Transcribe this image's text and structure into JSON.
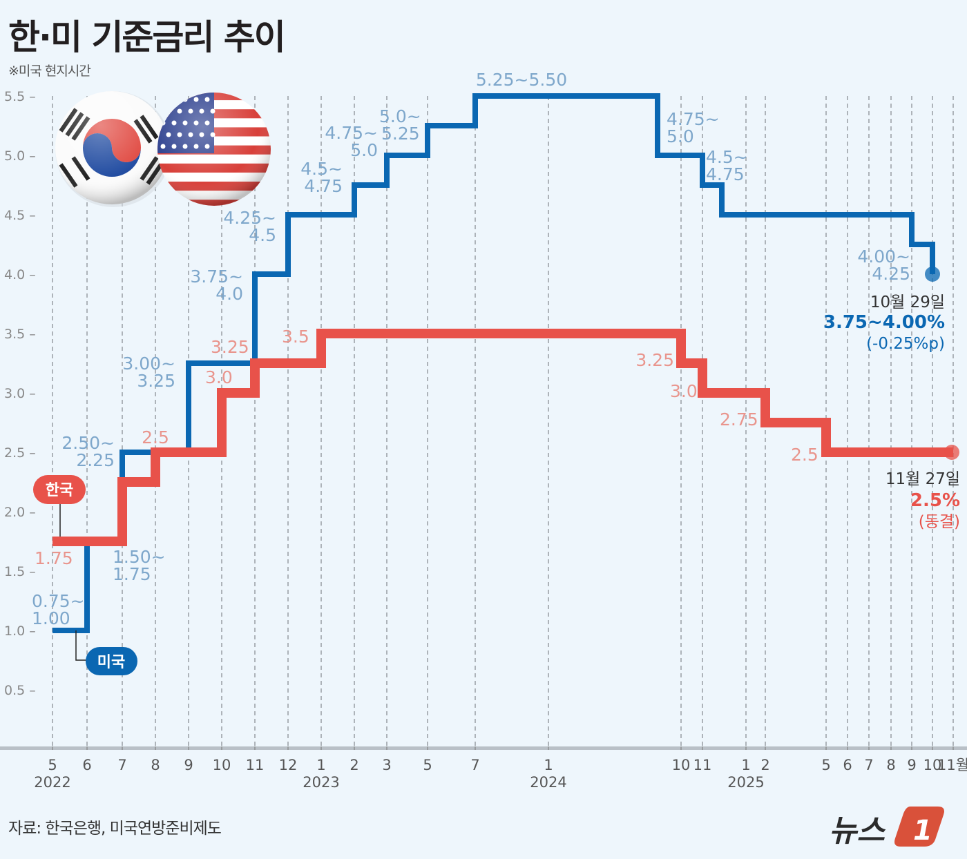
{
  "header": {
    "title": "한·미 기준금리 추이",
    "note": "※미국 현지시간"
  },
  "source": "자료: 한국은행, 미국연방준비제도",
  "logo": {
    "text": "뉴스",
    "mark": "1",
    "color": "#d9513a"
  },
  "colors": {
    "us": "#0a67b2",
    "korea": "#e8524a",
    "us_label": "#7ea7cb",
    "korea_label": "#e9958d",
    "background": "#eef6fc"
  },
  "chart_data": {
    "type": "line",
    "step": true,
    "ylim": [
      0.5,
      5.5
    ],
    "yticks": [
      "0.5",
      "1.0",
      "1.5",
      "2.0",
      "2.5",
      "3.0",
      "3.5",
      "4.0",
      "4.5",
      "5.0",
      "5.5"
    ],
    "xticks": [
      {
        "label": "5",
        "year": "2022",
        "date": "2022-05"
      },
      {
        "label": "6",
        "date": "2022-06"
      },
      {
        "label": "7",
        "date": "2022-07"
      },
      {
        "label": "8",
        "date": "2022-08"
      },
      {
        "label": "9",
        "date": "2022-09"
      },
      {
        "label": "10",
        "date": "2022-10"
      },
      {
        "label": "11",
        "date": "2022-11"
      },
      {
        "label": "12",
        "date": "2022-12"
      },
      {
        "label": "1",
        "year": "2023",
        "date": "2023-01"
      },
      {
        "label": "2",
        "date": "2023-02"
      },
      {
        "label": "3",
        "date": "2023-03"
      },
      {
        "label": "5",
        "date": "2023-05"
      },
      {
        "label": "7",
        "date": "2023-07"
      },
      {
        "label": "1",
        "year": "2024",
        "date": "2024-01"
      },
      {
        "label": "10",
        "date": "2024-10"
      },
      {
        "label": "11",
        "date": "2024-11"
      },
      {
        "label": "1",
        "year": "2025",
        "date": "2025-01"
      },
      {
        "label": "2",
        "date": "2025-02"
      },
      {
        "label": "5",
        "date": "2025-05"
      },
      {
        "label": "6",
        "date": "2025-06"
      },
      {
        "label": "7",
        "date": "2025-07"
      },
      {
        "label": "8",
        "date": "2025-08"
      },
      {
        "label": "9",
        "date": "2025-09"
      },
      {
        "label": "10",
        "date": "2025-10"
      },
      {
        "label": "11월",
        "date": "2025-11"
      }
    ],
    "series": [
      {
        "name": "미국",
        "color": "#0a67b2",
        "points": [
          {
            "date": "2022-05",
            "value": 1.0
          },
          {
            "date": "2022-06",
            "value": 1.75
          },
          {
            "date": "2022-07",
            "value": 2.5
          },
          {
            "date": "2022-09",
            "value": 3.25
          },
          {
            "date": "2022-11",
            "value": 4.0
          },
          {
            "date": "2022-12",
            "value": 4.5
          },
          {
            "date": "2023-02",
            "value": 4.75
          },
          {
            "date": "2023-03",
            "value": 5.0
          },
          {
            "date": "2023-05",
            "value": 5.25
          },
          {
            "date": "2023-07",
            "value": 5.5
          },
          {
            "date": "2024-09",
            "value": 5.0
          },
          {
            "date": "2024-11",
            "value": 4.75
          },
          {
            "date": "2024-12",
            "value": 4.5
          },
          {
            "date": "2025-09",
            "value": 4.25
          },
          {
            "date": "2025-10",
            "value": 4.0
          }
        ],
        "labels": [
          [
            "0.75~",
            "1.00"
          ],
          [
            "1.50~",
            "1.75"
          ],
          [
            "2.50~",
            "2.25"
          ],
          [
            "3.00~",
            "3.25"
          ],
          [
            "3.75~",
            "4.0"
          ],
          [
            "4.25~",
            "4.5"
          ],
          [
            "4.5~",
            "4.75"
          ],
          [
            "4.75~",
            "5.0"
          ],
          [
            "5.0~",
            "5.25"
          ],
          [
            "5.25~5.50"
          ],
          [
            "4.75~",
            "5.0"
          ],
          [
            "4.5~",
            "4.75"
          ],
          [
            "4.00~",
            "4.25"
          ]
        ],
        "final": {
          "date": "10월 29일",
          "value": "3.75~4.00%",
          "change": "(-0.25%p)"
        }
      },
      {
        "name": "한국",
        "color": "#e8524a",
        "points": [
          {
            "date": "2022-05",
            "value": 1.75
          },
          {
            "date": "2022-07",
            "value": 2.25
          },
          {
            "date": "2022-08",
            "value": 2.5
          },
          {
            "date": "2022-10",
            "value": 3.0
          },
          {
            "date": "2022-11",
            "value": 3.25
          },
          {
            "date": "2023-01",
            "value": 3.5
          },
          {
            "date": "2024-10",
            "value": 3.25
          },
          {
            "date": "2024-11",
            "value": 3.0
          },
          {
            "date": "2025-02",
            "value": 2.75
          },
          {
            "date": "2025-05",
            "value": 2.5
          },
          {
            "date": "2025-11",
            "value": 2.5
          }
        ],
        "labels": [
          "1.75",
          "2.5",
          "3.0",
          "3.25",
          "3.5",
          "3.25",
          "3.0",
          "2.75",
          "2.5"
        ],
        "final": {
          "date": "11월 27일",
          "value": "2.5%",
          "change": "(동결)"
        }
      }
    ]
  }
}
